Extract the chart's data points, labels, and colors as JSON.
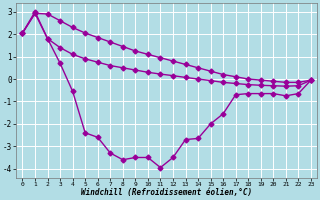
{
  "xlabel": "Windchill (Refroidissement éolien,°C)",
  "background_color": "#b2dde5",
  "grid_color": "#ffffff",
  "line_color": "#990099",
  "ylim": [
    -4.4,
    3.4
  ],
  "xlim": [
    -0.5,
    23.5
  ],
  "yticks": [
    -4,
    -3,
    -2,
    -1,
    0,
    1,
    2,
    3
  ],
  "xticks": [
    0,
    1,
    2,
    3,
    4,
    5,
    6,
    7,
    8,
    9,
    10,
    11,
    12,
    13,
    14,
    15,
    16,
    17,
    18,
    19,
    20,
    21,
    22,
    23
  ],
  "line1_x": [
    0,
    1,
    2,
    3,
    4,
    5,
    6,
    7,
    8,
    9,
    10,
    11,
    12,
    13,
    14,
    15,
    16,
    17,
    18,
    19,
    20,
    21,
    22,
    23
  ],
  "line1_y": [
    2.05,
    2.93,
    2.9,
    2.6,
    2.3,
    2.05,
    1.85,
    1.65,
    1.45,
    1.25,
    1.1,
    0.95,
    0.8,
    0.65,
    0.5,
    0.35,
    0.2,
    0.1,
    0.0,
    -0.05,
    -0.1,
    -0.15,
    -0.15,
    -0.05
  ],
  "line2_x": [
    0,
    1,
    2,
    3,
    4,
    5,
    6,
    7,
    8,
    9,
    10,
    11,
    12,
    13,
    14,
    15,
    16,
    17,
    18,
    19,
    20,
    21,
    22,
    23
  ],
  "line2_y": [
    2.05,
    2.93,
    1.8,
    1.4,
    1.1,
    0.9,
    0.75,
    0.6,
    0.5,
    0.4,
    0.3,
    0.22,
    0.15,
    0.07,
    0.0,
    -0.07,
    -0.15,
    -0.2,
    -0.25,
    -0.28,
    -0.3,
    -0.32,
    -0.3,
    -0.05
  ],
  "line3_x": [
    0,
    1,
    2,
    3,
    4,
    5,
    6,
    7,
    8,
    9,
    10,
    11,
    12,
    13,
    14,
    15,
    16,
    17,
    18,
    19,
    20,
    21,
    22,
    23
  ],
  "line3_y": [
    2.05,
    3.0,
    1.8,
    0.7,
    -0.55,
    -2.4,
    -2.6,
    -3.3,
    -3.6,
    -3.5,
    -3.5,
    -3.95,
    -3.5,
    -2.7,
    -2.65,
    -2.0,
    -1.55,
    -0.7,
    -0.65,
    -0.65,
    -0.65,
    -0.75,
    -0.65,
    -0.05
  ],
  "markersize": 2.5,
  "linewidth": 1.0
}
